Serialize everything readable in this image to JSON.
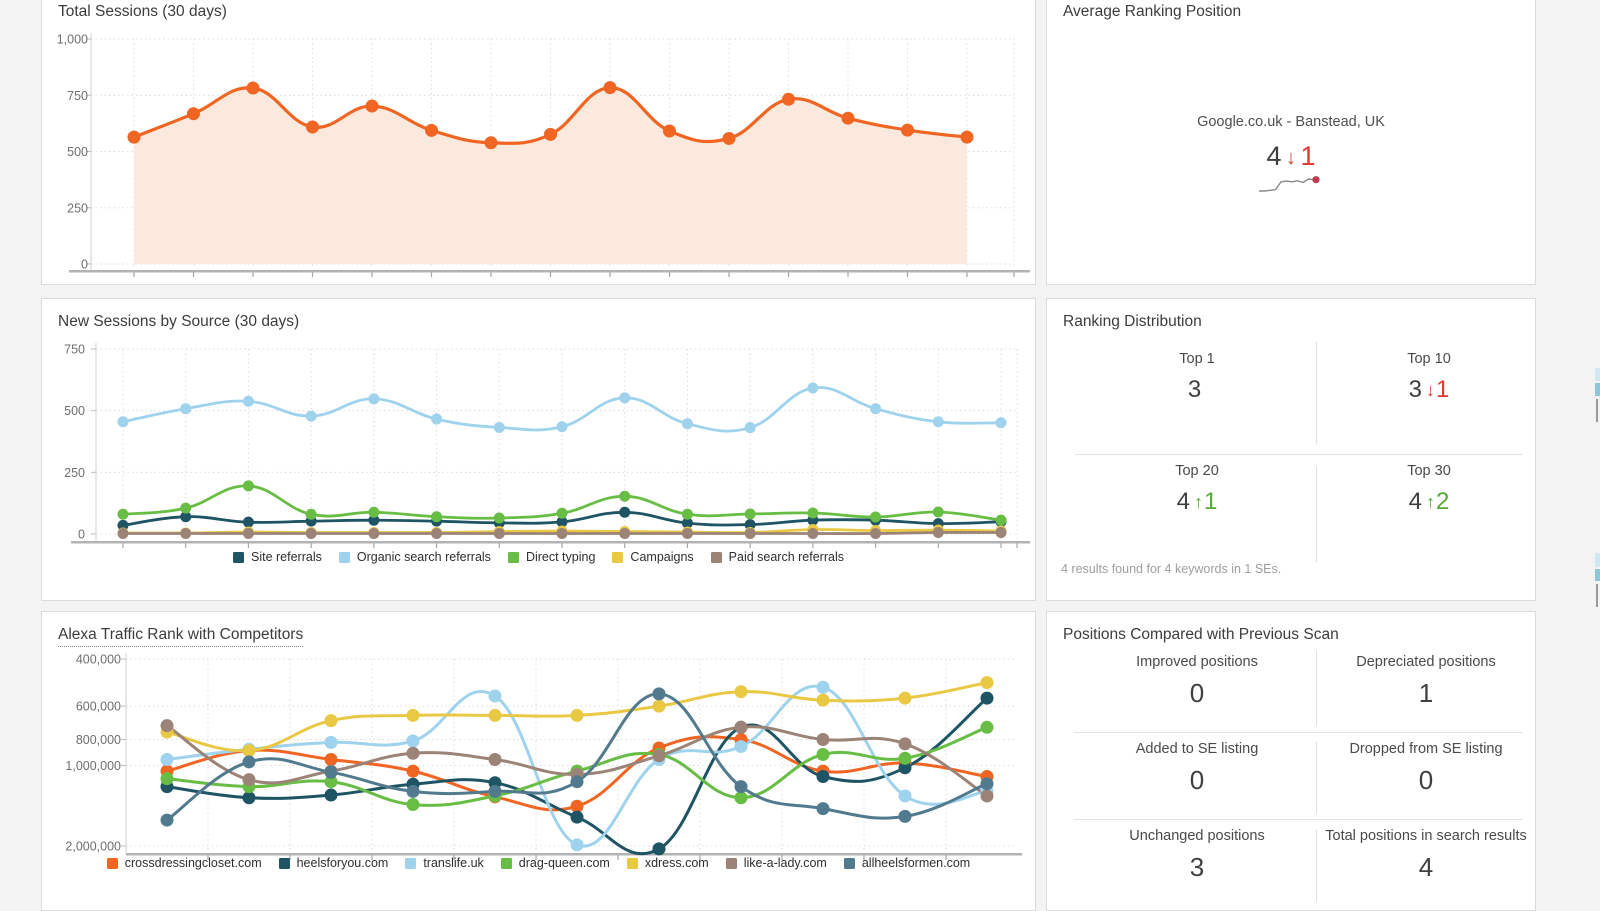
{
  "colors": {
    "page_bg": "#f3f3f3",
    "panel_bg": "#ffffff",
    "panel_border": "#dbdbdb",
    "accent_red": "#e0392d",
    "accent_green": "#55aa36",
    "sparkline_line": "#8a8a8a",
    "sparkline_dot": "#bf3b52"
  },
  "panels": {
    "total_sessions": {
      "title": "Total Sessions (30 days)"
    },
    "avg_ranking": {
      "title": "Average Ranking Position",
      "se_label": "Google.co.uk - Banstead, UK",
      "value": "4",
      "arrow": "↓",
      "delta": "1",
      "direction": "down",
      "sparkline": [
        5.0,
        5.0,
        4.95,
        4.9,
        4.35,
        4.3,
        4.35,
        4.28,
        4.4,
        4.15,
        4.2
      ]
    },
    "new_sessions": {
      "title": "New Sessions by Source (30 days)"
    },
    "ranking_distribution": {
      "title": "Ranking Distribution",
      "cells": [
        {
          "label": "Top 1",
          "value": "3",
          "arrow": "",
          "delta": "",
          "direction": "none"
        },
        {
          "label": "Top 10",
          "value": "3",
          "arrow": "↓",
          "delta": "1",
          "direction": "down"
        },
        {
          "label": "Top 20",
          "value": "4",
          "arrow": "↑",
          "delta": "1",
          "direction": "up"
        },
        {
          "label": "Top 30",
          "value": "4",
          "arrow": "↑",
          "delta": "2",
          "direction": "up"
        }
      ],
      "footer": "4 results found for 4 keywords in 1 SEs."
    },
    "alexa": {
      "title": "Alexa Traffic Rank with Competitors"
    },
    "positions_compared": {
      "title": "Positions Compared with Previous Scan",
      "cells": [
        {
          "label": "Improved positions",
          "value": "0"
        },
        {
          "label": "Depreciated positions",
          "value": "1"
        },
        {
          "label": "Added to SE listing",
          "value": "0"
        },
        {
          "label": "Dropped from SE listing",
          "value": "0"
        },
        {
          "label": "Unchanged positions",
          "value": "3"
        },
        {
          "label": "Total positions in search results",
          "value": "4"
        }
      ]
    }
  },
  "chart_data": [
    {
      "id": "total-sessions",
      "type": "area",
      "title": "Total Sessions (30 days)",
      "ylim": [
        0,
        1000
      ],
      "yticks": [
        0,
        250,
        500,
        750,
        1000
      ],
      "ytick_labels": [
        "0",
        "250",
        "500",
        "750",
        "1,000"
      ],
      "grid": true,
      "legend": "none",
      "series": [
        {
          "name": "Total sessions",
          "color": "#f16522",
          "fill": "#fbe9de",
          "values": [
            564,
            668,
            782,
            609,
            702,
            594,
            539,
            576,
            784,
            591,
            558,
            732,
            648,
            595,
            564
          ]
        }
      ]
    },
    {
      "id": "new-sessions",
      "type": "line",
      "title": "New Sessions by Source (30 days)",
      "ylim": [
        0,
        750
      ],
      "yticks": [
        0,
        250,
        500,
        750
      ],
      "ytick_labels": [
        "0",
        "250",
        "500",
        "750"
      ],
      "grid": true,
      "legend": "bottom",
      "series": [
        {
          "name": "Site referrals",
          "color": "#1e5464",
          "values": [
            35,
            70,
            48,
            52,
            56,
            52,
            45,
            49,
            88,
            44,
            38,
            56,
            56,
            42,
            50
          ]
        },
        {
          "name": "Organic search referrals",
          "color": "#9ed2ed",
          "values": [
            455,
            508,
            538,
            478,
            548,
            466,
            432,
            435,
            552,
            447,
            431,
            592,
            508,
            455,
            451
          ]
        },
        {
          "name": "Direct typing",
          "color": "#68bd45",
          "values": [
            80,
            105,
            195,
            80,
            88,
            70,
            65,
            84,
            153,
            80,
            81,
            85,
            69,
            89,
            56
          ]
        },
        {
          "name": "Campaigns",
          "color": "#e9c843",
          "values": [
            4,
            4,
            8,
            6,
            6,
            6,
            10,
            12,
            10,
            8,
            6,
            18,
            14,
            16,
            12
          ]
        },
        {
          "name": "Paid search referrals",
          "color": "#9c8377",
          "values": [
            2,
            2,
            2,
            2,
            2,
            2,
            2,
            2,
            2,
            2,
            2,
            2,
            2,
            6,
            6
          ]
        }
      ]
    },
    {
      "id": "alexa",
      "type": "line",
      "title": "Alexa Traffic Rank with Competitors",
      "yscale": "log-inverted",
      "ydomain": [
        400000,
        2000000
      ],
      "yticks": [
        400000,
        600000,
        800000,
        1000000,
        2000000
      ],
      "ytick_labels": [
        "400,000",
        "600,000",
        "800,000",
        "1,000,000",
        "2,000,000"
      ],
      "grid": true,
      "legend": "bottom",
      "series": [
        {
          "name": "crossdressingcloset.com",
          "color": "#f16522",
          "values": [
            1050000,
            880000,
            950000,
            1050000,
            1310000,
            1420000,
            860000,
            800000,
            1050000,
            980000,
            1100000
          ]
        },
        {
          "name": "heelsforyou.com",
          "color": "#1e5464",
          "values": [
            1200000,
            1320000,
            1290000,
            1175000,
            1160000,
            1560000,
            2050000,
            720000,
            1100000,
            1020000,
            560000
          ]
        },
        {
          "name": "translife.uk",
          "color": "#9ed2ed",
          "values": [
            950000,
            870000,
            820000,
            810000,
            550000,
            1980000,
            950000,
            850000,
            510000,
            1300000,
            1250000
          ]
        },
        {
          "name": "drag-queen.com",
          "color": "#68bd45",
          "values": [
            1120000,
            1200000,
            1150000,
            1400000,
            1300000,
            1050000,
            910000,
            1320000,
            910000,
            940000,
            720000
          ]
        },
        {
          "name": "xdress.com",
          "color": "#e9c843",
          "values": [
            750000,
            880000,
            680000,
            650000,
            650000,
            650000,
            600000,
            530000,
            570000,
            560000,
            490000
          ]
        },
        {
          "name": "like-a-lady.com",
          "color": "#9c8377",
          "values": [
            710000,
            1130000,
            1050000,
            900000,
            950000,
            1080000,
            920000,
            720000,
            800000,
            830000,
            1300000
          ]
        },
        {
          "name": "allheelsformen.com",
          "color": "#527a8e",
          "values": [
            1600000,
            970000,
            1060000,
            1250000,
            1250000,
            1150000,
            540000,
            1200000,
            1450000,
            1550000,
            1170000
          ]
        }
      ]
    }
  ]
}
